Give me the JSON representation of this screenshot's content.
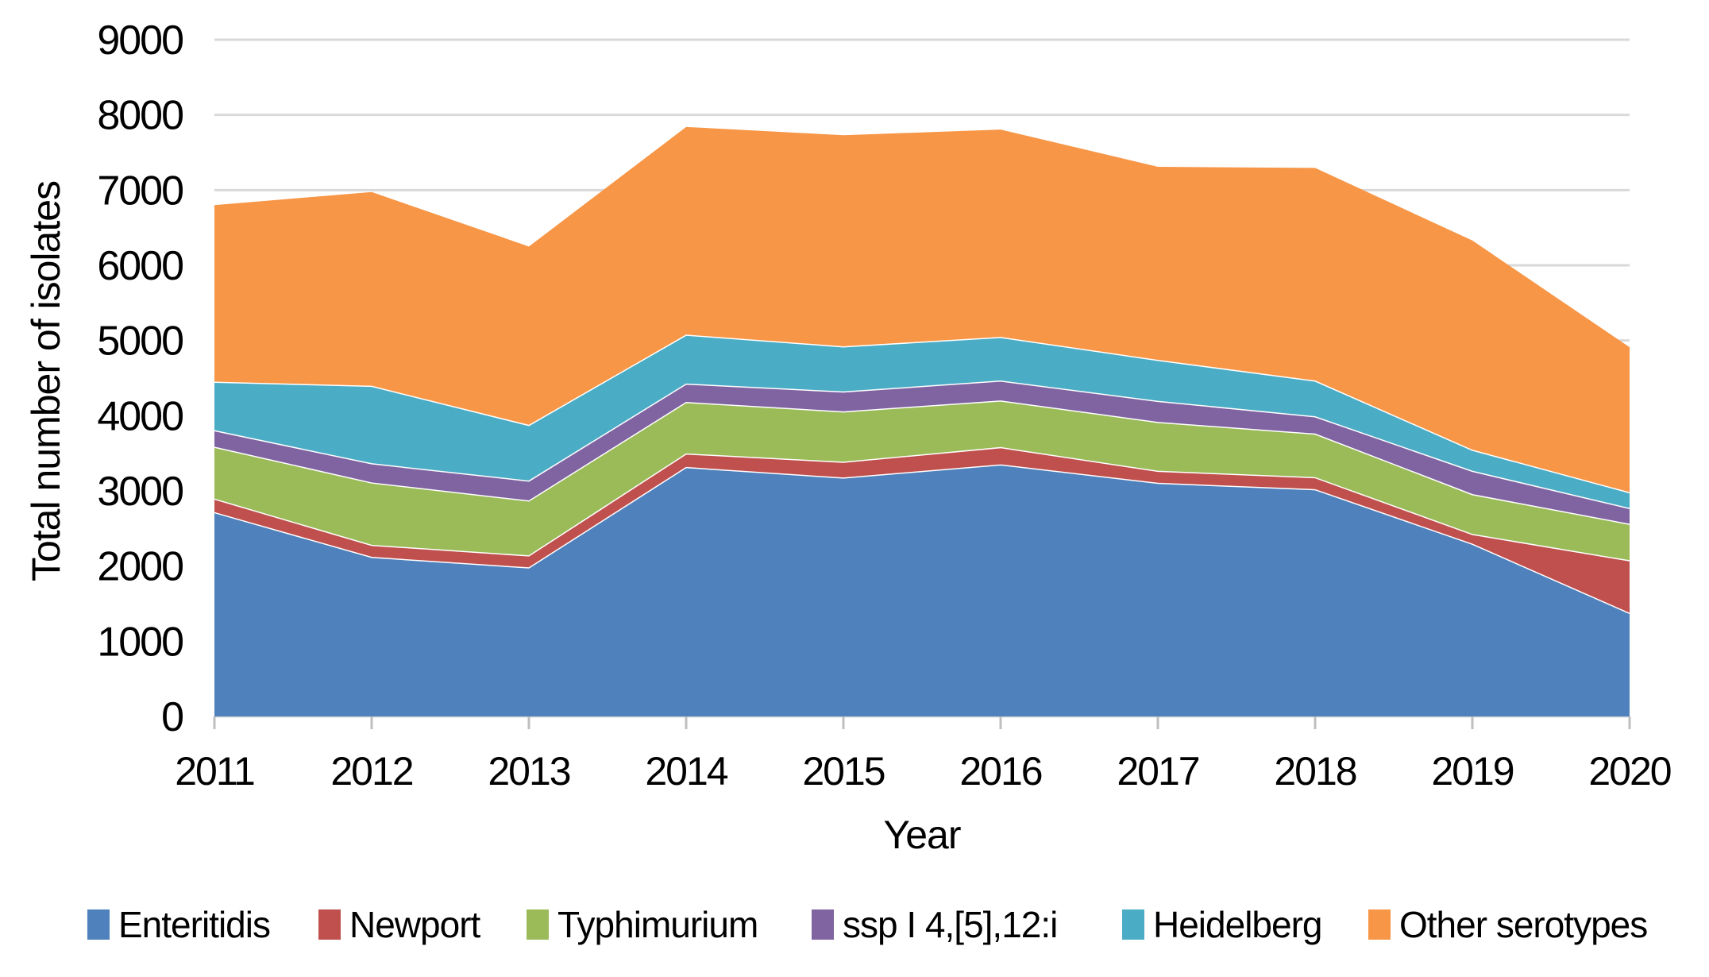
{
  "chart_data": {
    "type": "area",
    "stacked": true,
    "title": "",
    "xlabel": "Year",
    "ylabel": "Total number of isolates",
    "x": [
      2011,
      2012,
      2013,
      2014,
      2015,
      2016,
      2017,
      2018,
      2019,
      2020
    ],
    "series": [
      {
        "name": "Enteritidis",
        "color": "#4F81BD",
        "values": [
          2710,
          2115,
          1975,
          3310,
          3170,
          3345,
          3100,
          3015,
          2290,
          1370
        ]
      },
      {
        "name": "Newport",
        "color": "#C0504D",
        "values": [
          180,
          160,
          160,
          180,
          210,
          230,
          160,
          160,
          130,
          700
        ]
      },
      {
        "name": "Typhimurium",
        "color": "#9BBB59",
        "values": [
          690,
          830,
          730,
          685,
          670,
          620,
          650,
          580,
          530,
          485
        ]
      },
      {
        "name": "ssp I 4,[5],12:i",
        "color": "#8064A2",
        "values": [
          220,
          255,
          265,
          245,
          265,
          265,
          280,
          230,
          310,
          210
        ]
      },
      {
        "name": "Heidelberg",
        "color": "#4BACC6",
        "values": [
          645,
          1030,
          740,
          650,
          600,
          580,
          545,
          475,
          280,
          210
        ]
      },
      {
        "name": "Other serotypes",
        "color": "#F79646",
        "values": [
          2355,
          2585,
          2380,
          2770,
          2815,
          2765,
          2575,
          2835,
          2790,
          1935
        ]
      }
    ],
    "totals": [
      6800,
      6975,
      6250,
      7840,
      7730,
      7805,
      7310,
      7295,
      6330,
      4910
    ],
    "ylim": [
      0,
      9000
    ],
    "yticks": [
      0,
      1000,
      2000,
      3000,
      4000,
      5000,
      6000,
      7000,
      8000,
      9000
    ],
    "grid": "horizontal",
    "legend_position": "bottom",
    "colors": {
      "gridline": "#D9D9D9",
      "tick": "#BFBFBF",
      "seam": "#FFFFFF",
      "text": "#000000",
      "background": "#FFFFFF"
    }
  }
}
